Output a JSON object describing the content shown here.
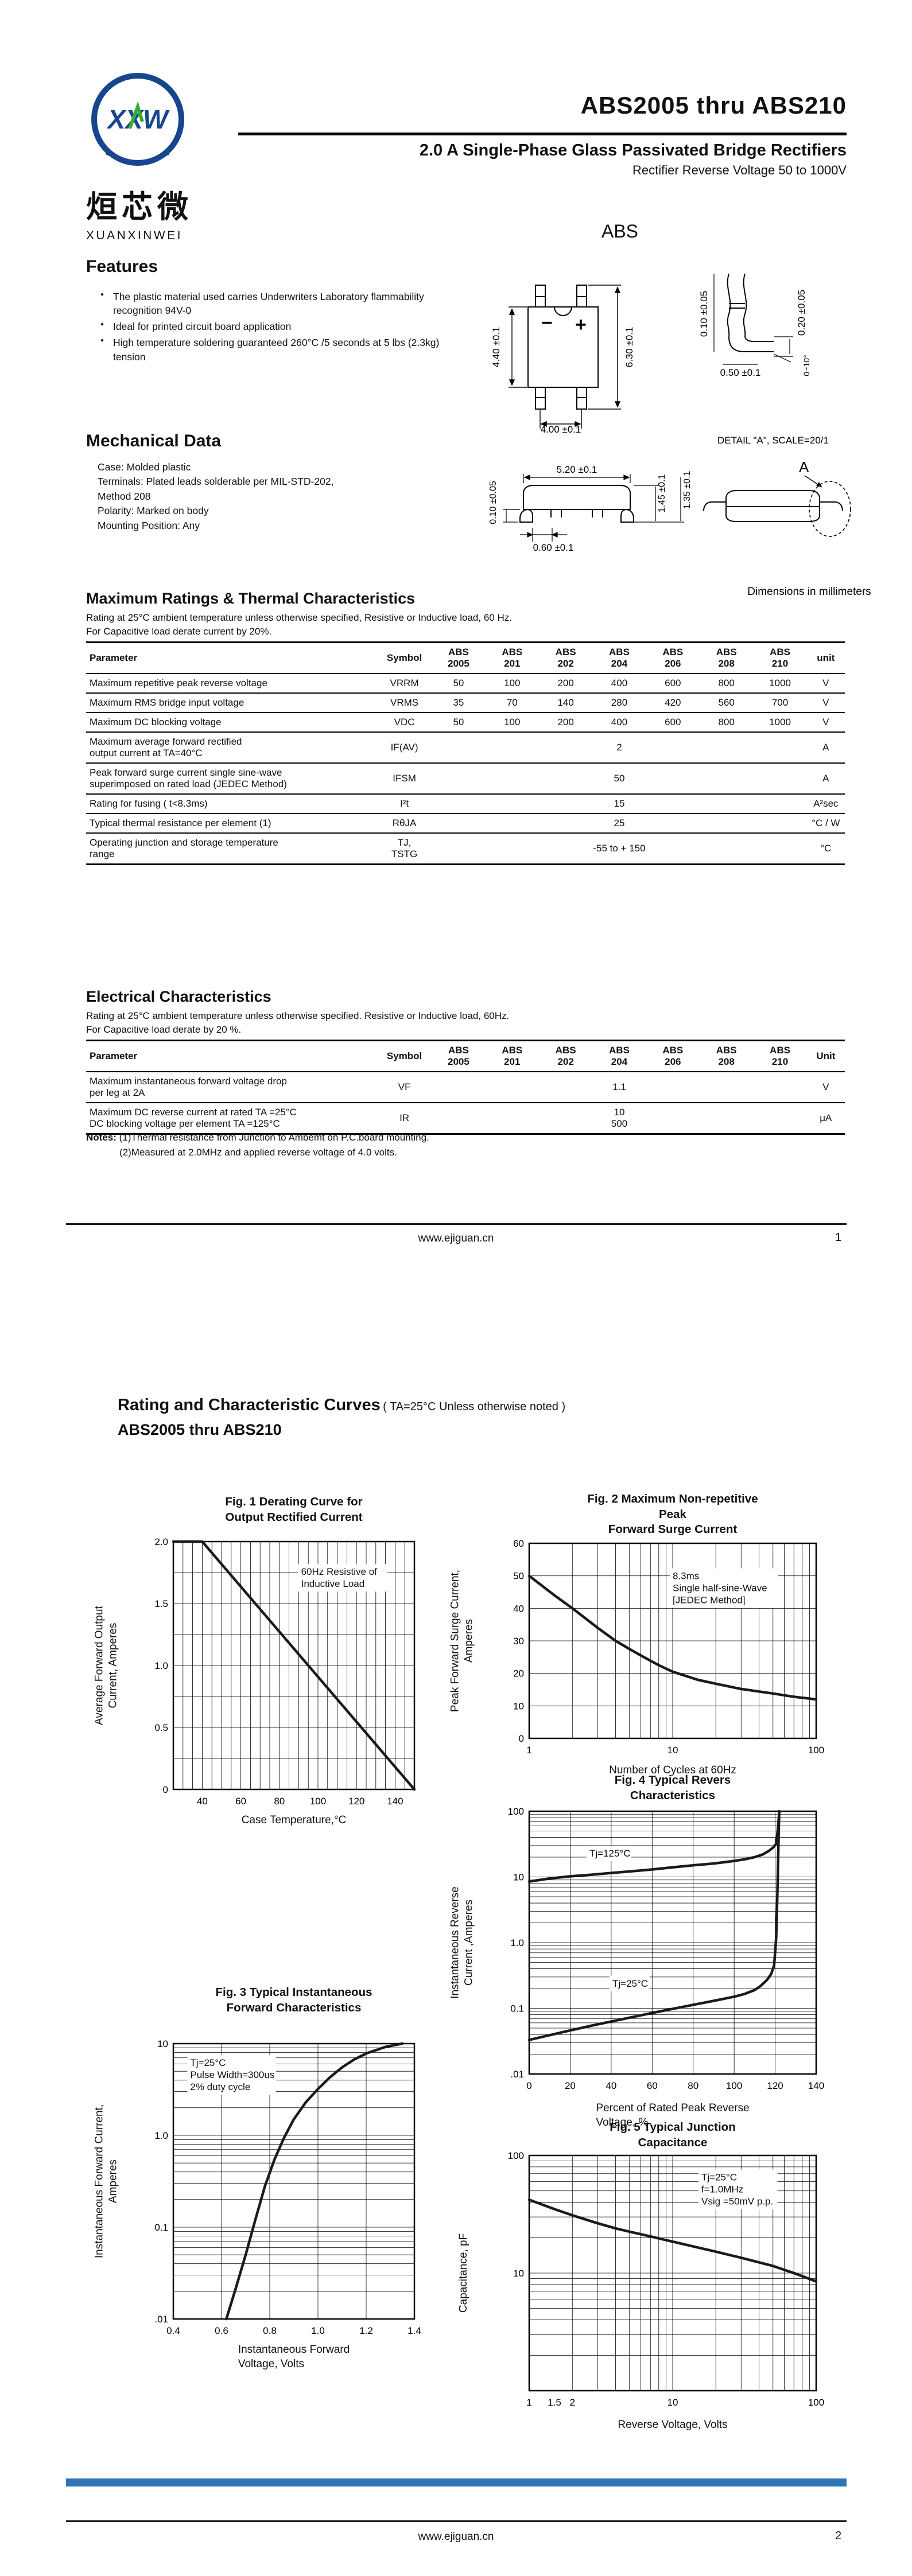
{
  "page1": {
    "brand": {
      "logo_text": "XXW",
      "cn": "烜芯微",
      "en": "XUANXINWEI"
    },
    "title": "ABS2005  thru  ABS210",
    "subtitle": "2.0  A Single-Phase Glass Passivated Bridge Rectifiers",
    "subtitle2": "Rectifier Reverse Voltage 50 to 1000V",
    "package_label": "ABS",
    "features": {
      "heading": "Features",
      "items": [
        "The plastic material used carries Underwriters Laboratory flammability recognition 94V-0",
        "Ideal for printed circuit board application",
        "High temperature soldering guaranteed 260°C /5 seconds at 5 lbs (2.3kg) tension"
      ]
    },
    "mechanical": {
      "heading": "Mechanical Data",
      "lines": "Case: Molded plastic\nTerminals: Plated leads solderable per MIL-STD-202,\n                   Method 208\nPolarity: Marked on body\nMounting Position: Any"
    },
    "diagramA": {
      "minus": "−",
      "plus": "+",
      "dim_body_h": "4.40 ±0.1",
      "dim_total_h": "6.30 ±0.1",
      "dim_pins_w": "4.00 ±0.1",
      "dim_lead_t1": "0.10 ±0.05",
      "dim_lead_t2": "0.20 ±0.05",
      "dim_lead_w": "0.50 ±0.1",
      "dim_angle": "0~10°"
    },
    "diagramB": {
      "dim_standoff": "0.10 ±0.05",
      "dim_body_w": "5.20 ±0.1",
      "dim_h1": "1.45 ±0.1",
      "dim_h2": "1.35 ±0.1",
      "dim_lead": "0.60 ±0.1",
      "detail": "DETAIL \"A\", SCALE=20/1",
      "detail_mark": "A",
      "note": "Dimensions in millimeters"
    },
    "ratings": {
      "heading": "Maximum Ratings & Thermal Characteristics",
      "note1": "Rating at 25°C ambient temperature unless otherwise specified, Resistive or Inductive load, 60 Hz.",
      "note2": "For Capacitive load derate current by 20%.",
      "table": {
        "headers": [
          "Parameter",
          "Symbol",
          "ABS\n2005",
          "ABS\n201",
          "ABS\n202",
          "ABS\n204",
          "ABS\n206",
          "ABS\n208",
          "ABS\n210",
          "unit"
        ],
        "rows": [
          {
            "param": "Maximum repetitive peak reverse voltage",
            "symbol": "VRRM",
            "values": [
              "50",
              "100",
              "200",
              "400",
              "600",
              "800",
              "1000"
            ],
            "unit": "V"
          },
          {
            "param": "Maximum RMS bridge input voltage",
            "symbol": "VRMS",
            "values": [
              "35",
              "70",
              "140",
              "280",
              "420",
              "560",
              "700"
            ],
            "unit": "V"
          },
          {
            "param": "Maximum DC blocking voltage",
            "symbol": "VDC",
            "values": [
              "50",
              "100",
              "200",
              "400",
              "600",
              "800",
              "1000"
            ],
            "unit": "V"
          },
          {
            "param": "Maximum average forward rectified\noutput current at TA=40°C",
            "symbol": "IF(AV)",
            "span": "2",
            "unit": "A"
          },
          {
            "param": "Peak forward surge current single sine-wave\nsuperimposed on rated load (JEDEC Method)",
            "symbol": "IFSM",
            "span": "50",
            "unit": "A"
          },
          {
            "param": "Rating for fusing ( t<8.3ms)",
            "symbol": "I²t",
            "span": "15",
            "unit": "A²sec"
          },
          {
            "param": "Typical  thermal resistance per element (1)",
            "symbol": "RθJA",
            "span": "25",
            "unit": "°C / W"
          },
          {
            "param": "Operating junction and storage temperature\nrange",
            "symbol": "TJ,\nTSTG",
            "span": "-55 to + 150",
            "unit": "°C"
          }
        ]
      }
    },
    "electrical": {
      "heading": "Electrical Characteristics",
      "note1": "Rating at 25°C ambient temperature unless otherwise specified. Resistive or Inductive load, 60Hz.",
      "note2": "For Capacitive load derate by 20 %.",
      "table": {
        "headers": [
          "Parameter",
          "Symbol",
          "ABS\n2005",
          "ABS\n201",
          "ABS\n202",
          "ABS\n204",
          "ABS\n206",
          "ABS\n208",
          "ABS\n210",
          "Unit"
        ],
        "rows": [
          {
            "param": "Maximum instantaneous forward voltage drop\nper leg at 2A",
            "symbol": "VF",
            "span": "1.1",
            "unit": "V"
          },
          {
            "param": "Maximum DC reverse current at rated  TA =25°C\nDC blocking voltage per element       TA =125°C",
            "symbol": "IR",
            "span": "10\n500",
            "unit": "μA"
          }
        ]
      }
    },
    "notes": {
      "label": "Notes:",
      "line1": "(1)Thermal resistance from Junction to Ambemt on P.C.board mounting.",
      "line2": "(2)Measured at 2.0MHz and applied reverse voltage of 4.0 volts."
    },
    "footer": {
      "site": "www.ejiguan.cn",
      "page": "1"
    }
  },
  "page2": {
    "heading_bold": "Rating and Characteristic Curves",
    "heading_note": "( TA=25°C Unless otherwise noted )",
    "heading_sub": "ABS2005 thru ABS210",
    "footer": {
      "site": "www.ejiguan.cn",
      "page": "2"
    }
  },
  "chart_data": [
    {
      "id": "fig1",
      "type": "line",
      "title": "Fig. 1 Derating Curve for\nOutput Rectified Current",
      "xlabel": "Case Temperature,°C",
      "ylabel": "Average Forward Output\nCurrent, Amperes",
      "xscale": "linear",
      "xlim": [
        25,
        150
      ],
      "yscale": "linear",
      "ylim": [
        0,
        2
      ],
      "grid": {
        "x_step": 5,
        "y_step": 0.25
      },
      "xticks": [
        [
          40,
          "40"
        ],
        [
          60,
          "60"
        ],
        [
          80,
          "80"
        ],
        [
          100,
          "100"
        ],
        [
          120,
          "120"
        ],
        [
          140,
          "140"
        ]
      ],
      "yticks": [
        [
          0,
          "0"
        ],
        [
          0.5,
          "0.5"
        ],
        [
          1,
          "1.0"
        ],
        [
          1.5,
          "1.5"
        ],
        [
          2,
          "2.0"
        ]
      ],
      "series": [
        {
          "name": "derating",
          "points": [
            [
              25,
              2
            ],
            [
              40,
              2
            ],
            [
              150,
              0
            ]
          ]
        }
      ],
      "annotations": [
        {
          "lines": [
            "60Hz Resistive of",
            "Inductive Load"
          ],
          "fx": 0.53,
          "fy": 0.1
        }
      ]
    },
    {
      "id": "fig2",
      "type": "line",
      "title": "Fig. 2 Maximum Non-repetitive Peak\nForward Surge Current",
      "xlabel": "Number of Cycles at 60Hz",
      "ylabel": "Peak Forward Surge Current,\nAmperes",
      "xscale": "log",
      "xlim": [
        1,
        100
      ],
      "yscale": "linear",
      "ylim": [
        0,
        60
      ],
      "grid": {
        "y_step": 10
      },
      "xticks": [
        [
          1,
          "1"
        ],
        [
          10,
          "10"
        ],
        [
          100,
          "100"
        ]
      ],
      "yticks": [
        [
          0,
          "0"
        ],
        [
          10,
          "10"
        ],
        [
          20,
          "20"
        ],
        [
          30,
          "30"
        ],
        [
          40,
          "40"
        ],
        [
          50,
          "50"
        ],
        [
          60,
          "60"
        ]
      ],
      "series": [
        {
          "name": "surge",
          "points": [
            [
              1,
              50
            ],
            [
              1.5,
              44
            ],
            [
              2,
              40
            ],
            [
              3,
              34
            ],
            [
              4,
              30
            ],
            [
              5,
              27.5
            ],
            [
              6,
              25.5
            ],
            [
              8,
              22.5
            ],
            [
              10,
              20.5
            ],
            [
              15,
              18
            ],
            [
              20,
              16.8
            ],
            [
              30,
              15.2
            ],
            [
              50,
              13.8
            ],
            [
              70,
              12.8
            ],
            [
              100,
              12
            ]
          ]
        }
      ],
      "annotations": [
        {
          "lines": [
            "8.3ms",
            "Single half-sine-Wave",
            "[JEDEC Method]"
          ],
          "fx": 0.5,
          "fy": 0.14
        }
      ]
    },
    {
      "id": "fig3",
      "type": "line",
      "title": "Fig. 3 Typical Instantaneous\nForward Characteristics",
      "xlabel": "Instantaneous Forward\nVoltage, Volts",
      "ylabel": "Instantaneous Forward Current,\nAmperes",
      "xscale": "linear",
      "xlim": [
        0.4,
        1.4
      ],
      "yscale": "log",
      "ylim": [
        0.01,
        10
      ],
      "grid": {
        "x_step": 0.2
      },
      "xticks": [
        [
          0.4,
          "0.4"
        ],
        [
          0.6,
          "0.6"
        ],
        [
          0.8,
          "0.8"
        ],
        [
          1.0,
          "1.0"
        ],
        [
          1.2,
          "1.2"
        ],
        [
          1.4,
          "1.4"
        ]
      ],
      "yticks": [
        [
          0.01,
          ".01"
        ],
        [
          0.1,
          "0.1"
        ],
        [
          1,
          "1.0"
        ],
        [
          10,
          "10"
        ]
      ],
      "series": [
        {
          "name": "Tj=25C",
          "points": [
            [
              0.62,
              0.01
            ],
            [
              0.66,
              0.022
            ],
            [
              0.7,
              0.05
            ],
            [
              0.74,
              0.12
            ],
            [
              0.78,
              0.28
            ],
            [
              0.82,
              0.55
            ],
            [
              0.86,
              0.95
            ],
            [
              0.9,
              1.5
            ],
            [
              0.95,
              2.3
            ],
            [
              1.0,
              3.2
            ],
            [
              1.05,
              4.3
            ],
            [
              1.1,
              5.5
            ],
            [
              1.15,
              6.7
            ],
            [
              1.2,
              7.8
            ],
            [
              1.28,
              9.2
            ],
            [
              1.35,
              10
            ]
          ]
        }
      ],
      "annotations": [
        {
          "lines": [
            "Tj=25°C",
            "Pulse Width=300us",
            "2% duty cycle"
          ],
          "fx": 0.07,
          "fy": 0.05
        }
      ]
    },
    {
      "id": "fig4",
      "type": "line",
      "title": "Fig. 4 Typical Revers Characteristics",
      "xlabel": "Percent of Rated Peak Reverse\nVoltage, %",
      "ylabel": "Instantaneous Reverse\nCurrent ,Amperes",
      "xscale": "linear",
      "xlim": [
        0,
        140
      ],
      "yscale": "log",
      "ylim": [
        0.01,
        100
      ],
      "grid": {
        "x_step": 20
      },
      "xticks": [
        [
          0,
          "0"
        ],
        [
          20,
          "20"
        ],
        [
          40,
          "40"
        ],
        [
          60,
          "60"
        ],
        [
          80,
          "80"
        ],
        [
          100,
          "100"
        ],
        [
          120,
          "120"
        ],
        [
          140,
          "140"
        ]
      ],
      "yticks": [
        [
          0.01,
          ".01"
        ],
        [
          0.1,
          "0.1"
        ],
        [
          1,
          "1.0"
        ],
        [
          10,
          "10"
        ],
        [
          100,
          "100"
        ]
      ],
      "series": [
        {
          "name": "Tj=125C",
          "points": [
            [
              0,
              8.5
            ],
            [
              10,
              9.5
            ],
            [
              20,
              10.2
            ],
            [
              30,
              10.8
            ],
            [
              40,
              11.5
            ],
            [
              50,
              12.2
            ],
            [
              60,
              13
            ],
            [
              70,
              14
            ],
            [
              80,
              15
            ],
            [
              90,
              16
            ],
            [
              100,
              17.5
            ],
            [
              105,
              18.5
            ],
            [
              110,
              20
            ],
            [
              114,
              22
            ],
            [
              117,
              25
            ],
            [
              119,
              28
            ],
            [
              120.5,
              32
            ],
            [
              121.5,
              60
            ],
            [
              122,
              100
            ]
          ]
        },
        {
          "name": "Tj=25C",
          "points": [
            [
              0,
              0.033
            ],
            [
              10,
              0.039
            ],
            [
              20,
              0.046
            ],
            [
              30,
              0.054
            ],
            [
              40,
              0.063
            ],
            [
              50,
              0.073
            ],
            [
              60,
              0.085
            ],
            [
              70,
              0.098
            ],
            [
              80,
              0.113
            ],
            [
              90,
              0.13
            ],
            [
              100,
              0.15
            ],
            [
              105,
              0.165
            ],
            [
              110,
              0.19
            ],
            [
              113,
              0.22
            ],
            [
              116,
              0.27
            ],
            [
              118,
              0.33
            ],
            [
              119.5,
              0.45
            ],
            [
              120.5,
              1.2
            ],
            [
              121.2,
              8
            ],
            [
              121.8,
              60
            ],
            [
              122,
              100
            ]
          ]
        }
      ],
      "annotations": [
        {
          "lines": [
            "Tj=125°C"
          ],
          "fx": 0.21,
          "fy": 0.14
        },
        {
          "lines": [
            "Tj=25°C"
          ],
          "fx": 0.29,
          "fy": 0.635
        }
      ]
    },
    {
      "id": "fig5",
      "type": "line",
      "title": "Fig. 5 Typical Junction Capacitance",
      "xlabel": "Reverse Voltage, Volts",
      "ylabel": "Capacitance, pF",
      "xscale": "log",
      "xlim": [
        1,
        100
      ],
      "yscale": "log",
      "ylim": [
        1,
        100
      ],
      "grid": {},
      "xticks": [
        [
          1,
          "1"
        ],
        [
          1.5,
          "1.5"
        ],
        [
          2,
          "2"
        ],
        [
          10,
          "10"
        ],
        [
          100,
          "100"
        ]
      ],
      "yticks": [
        [
          10,
          "10"
        ],
        [
          100,
          "100"
        ]
      ],
      "series": [
        {
          "name": "Cj",
          "points": [
            [
              1,
              42
            ],
            [
              1.5,
              35
            ],
            [
              2,
              31
            ],
            [
              3,
              26.5
            ],
            [
              4,
              24
            ],
            [
              5,
              22.5
            ],
            [
              7,
              20.5
            ],
            [
              10,
              18.5
            ],
            [
              15,
              16.5
            ],
            [
              20,
              15.2
            ],
            [
              30,
              13.5
            ],
            [
              50,
              11.5
            ],
            [
              70,
              10
            ],
            [
              100,
              8.5
            ]
          ]
        }
      ],
      "annotations": [
        {
          "lines": [
            "Tj=25°C",
            "f=1.0MHz",
            "Vsig =50mV p.p."
          ],
          "fx": 0.6,
          "fy": 0.07
        }
      ]
    }
  ]
}
